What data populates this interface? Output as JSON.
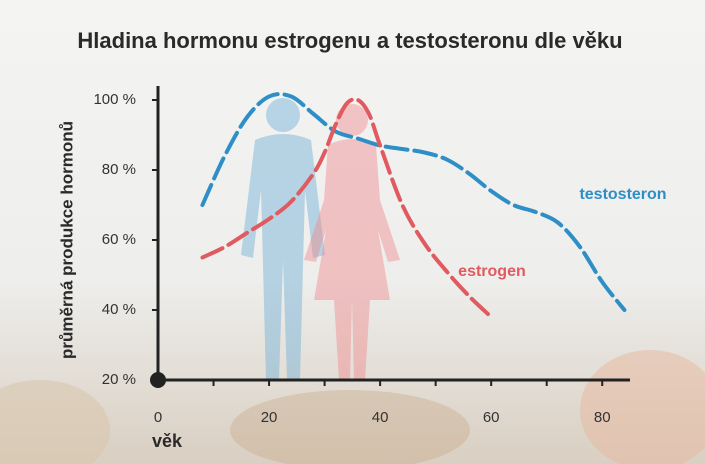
{
  "chart_data": {
    "type": "line",
    "title": "Hladina hormonu estrogenu a testosteronu dle věku",
    "xlabel": "věk",
    "ylabel": "průměrná produkce hormonů",
    "xlim": [
      0,
      85
    ],
    "ylim": [
      20,
      104
    ],
    "xticks": [
      0,
      20,
      40,
      60,
      80
    ],
    "xminorticks": [
      10,
      30,
      50,
      70
    ],
    "yticks": [
      {
        "value": 20,
        "label": "20 %"
      },
      {
        "value": 40,
        "label": "40 %"
      },
      {
        "value": 60,
        "label": "60 %"
      },
      {
        "value": 80,
        "label": "80 %"
      },
      {
        "value": 100,
        "label": "100 %"
      }
    ],
    "dashed": true,
    "series": [
      {
        "name": "testosteron",
        "color": "#2e8fc7",
        "x": [
          8,
          12,
          16,
          20,
          24,
          28,
          32,
          36,
          40,
          44,
          48,
          52,
          56,
          60,
          64,
          68,
          72,
          76,
          80,
          84
        ],
        "values": [
          70,
          84,
          95,
          101,
          101,
          96,
          91,
          89,
          87,
          86,
          85,
          83,
          79,
          74,
          70,
          68,
          65,
          58,
          48,
          40
        ]
      },
      {
        "name": "estrogen",
        "color": "#e05a5f",
        "x": [
          8,
          12,
          16,
          20,
          24,
          28,
          30,
          32,
          34,
          36,
          38,
          40,
          44,
          48,
          52,
          56,
          60
        ],
        "values": [
          55,
          58,
          62,
          66,
          71,
          79,
          85,
          93,
          99,
          100,
          96,
          87,
          70,
          59,
          51,
          44,
          38
        ]
      }
    ]
  }
}
